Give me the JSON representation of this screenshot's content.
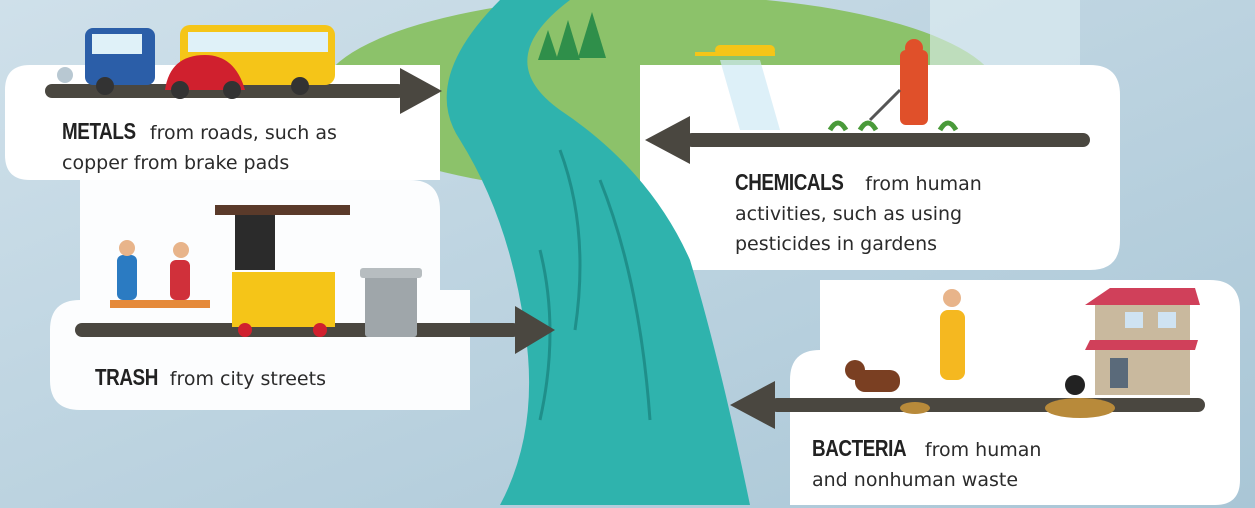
{
  "panels": [
    {
      "keyword": "METALS",
      "text": "from roads, such as copper from brake pads"
    },
    {
      "keyword": "CHEMICALS",
      "text": "from human activities, such as using pesticides in gardens"
    },
    {
      "keyword": "TRASH",
      "text": "from city streets"
    },
    {
      "keyword": "BACTERIA",
      "text": "from human and nonhuman waste"
    }
  ]
}
